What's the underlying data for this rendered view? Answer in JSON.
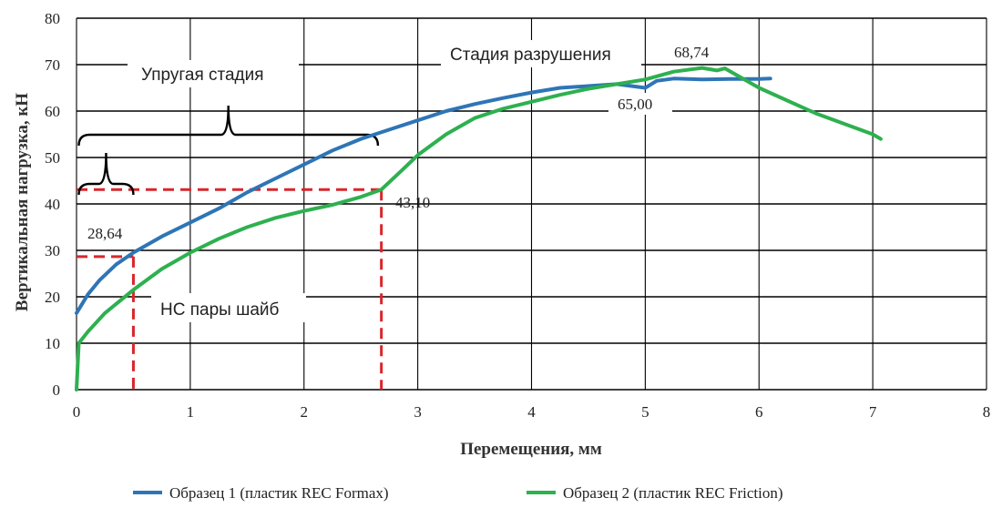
{
  "chart_data": {
    "type": "line",
    "title": "",
    "xlabel": "Перемещения, мм",
    "ylabel": "Вертикальная нагрузка, кН",
    "xlim": [
      0,
      8
    ],
    "ylim": [
      0,
      80
    ],
    "x_ticks": [
      "0",
      "1",
      "2",
      "3",
      "4",
      "5",
      "6",
      "7",
      "8"
    ],
    "y_ticks": [
      "0",
      "10",
      "20",
      "30",
      "40",
      "50",
      "60",
      "70",
      "80"
    ],
    "grid": true,
    "legend_position": "bottom",
    "series": [
      {
        "name": "Образец 1 (пластик REC Formax)",
        "color": "#2e75b6",
        "points": [
          [
            0,
            16.5
          ],
          [
            0.1,
            20.5
          ],
          [
            0.2,
            23.5
          ],
          [
            0.35,
            27
          ],
          [
            0.5,
            29.5
          ],
          [
            0.75,
            33
          ],
          [
            1.0,
            36
          ],
          [
            1.25,
            39
          ],
          [
            1.5,
            42.5
          ],
          [
            1.75,
            45.5
          ],
          [
            2.0,
            48.5
          ],
          [
            2.25,
            51.5
          ],
          [
            2.5,
            54
          ],
          [
            2.75,
            56
          ],
          [
            3.0,
            58
          ],
          [
            3.25,
            60
          ],
          [
            3.5,
            61.5
          ],
          [
            3.75,
            62.8
          ],
          [
            4.0,
            64
          ],
          [
            4.25,
            65
          ],
          [
            4.5,
            65.4
          ],
          [
            4.75,
            65.8
          ],
          [
            5.0,
            65.0
          ],
          [
            5.1,
            66.5
          ],
          [
            5.25,
            67
          ],
          [
            5.5,
            66.8
          ],
          [
            5.75,
            66.9
          ],
          [
            6.0,
            66.9
          ],
          [
            6.1,
            67
          ]
        ]
      },
      {
        "name": "Образец 2 (пластик REC Friction)",
        "color": "#2eb04f",
        "points": [
          [
            0,
            0
          ],
          [
            0.02,
            10
          ],
          [
            0.1,
            12.5
          ],
          [
            0.25,
            16.5
          ],
          [
            0.5,
            21.5
          ],
          [
            0.75,
            26
          ],
          [
            1.0,
            29.5
          ],
          [
            1.25,
            32.5
          ],
          [
            1.5,
            35
          ],
          [
            1.75,
            37
          ],
          [
            2.0,
            38.5
          ],
          [
            2.25,
            39.8
          ],
          [
            2.5,
            41.5
          ],
          [
            2.68,
            43.1
          ],
          [
            2.85,
            47
          ],
          [
            3.0,
            50.5
          ],
          [
            3.25,
            55
          ],
          [
            3.5,
            58.5
          ],
          [
            3.75,
            60.5
          ],
          [
            4.0,
            62
          ],
          [
            4.25,
            63.5
          ],
          [
            4.5,
            64.8
          ],
          [
            4.75,
            65.8
          ],
          [
            5.0,
            66.8
          ],
          [
            5.25,
            68.5
          ],
          [
            5.5,
            69.3
          ],
          [
            5.63,
            68.74
          ],
          [
            5.7,
            69.2
          ],
          [
            6.0,
            65
          ],
          [
            6.5,
            59.5
          ],
          [
            7.0,
            55
          ],
          [
            7.07,
            54
          ]
        ]
      }
    ],
    "annotations": {
      "stage_fracture": "Стадия разрушения",
      "stage_elastic": "Упругая стадия",
      "ns_washers": "НС пары шайб",
      "val_68": "68,74",
      "val_65": "65,00",
      "val_43": "43,10",
      "val_28": "28,64"
    },
    "reference_levels": {
      "v28": 28.64,
      "v43": 43.1,
      "x28": 0.5,
      "x43": 2.68
    },
    "reference_color": "#d9262b"
  }
}
